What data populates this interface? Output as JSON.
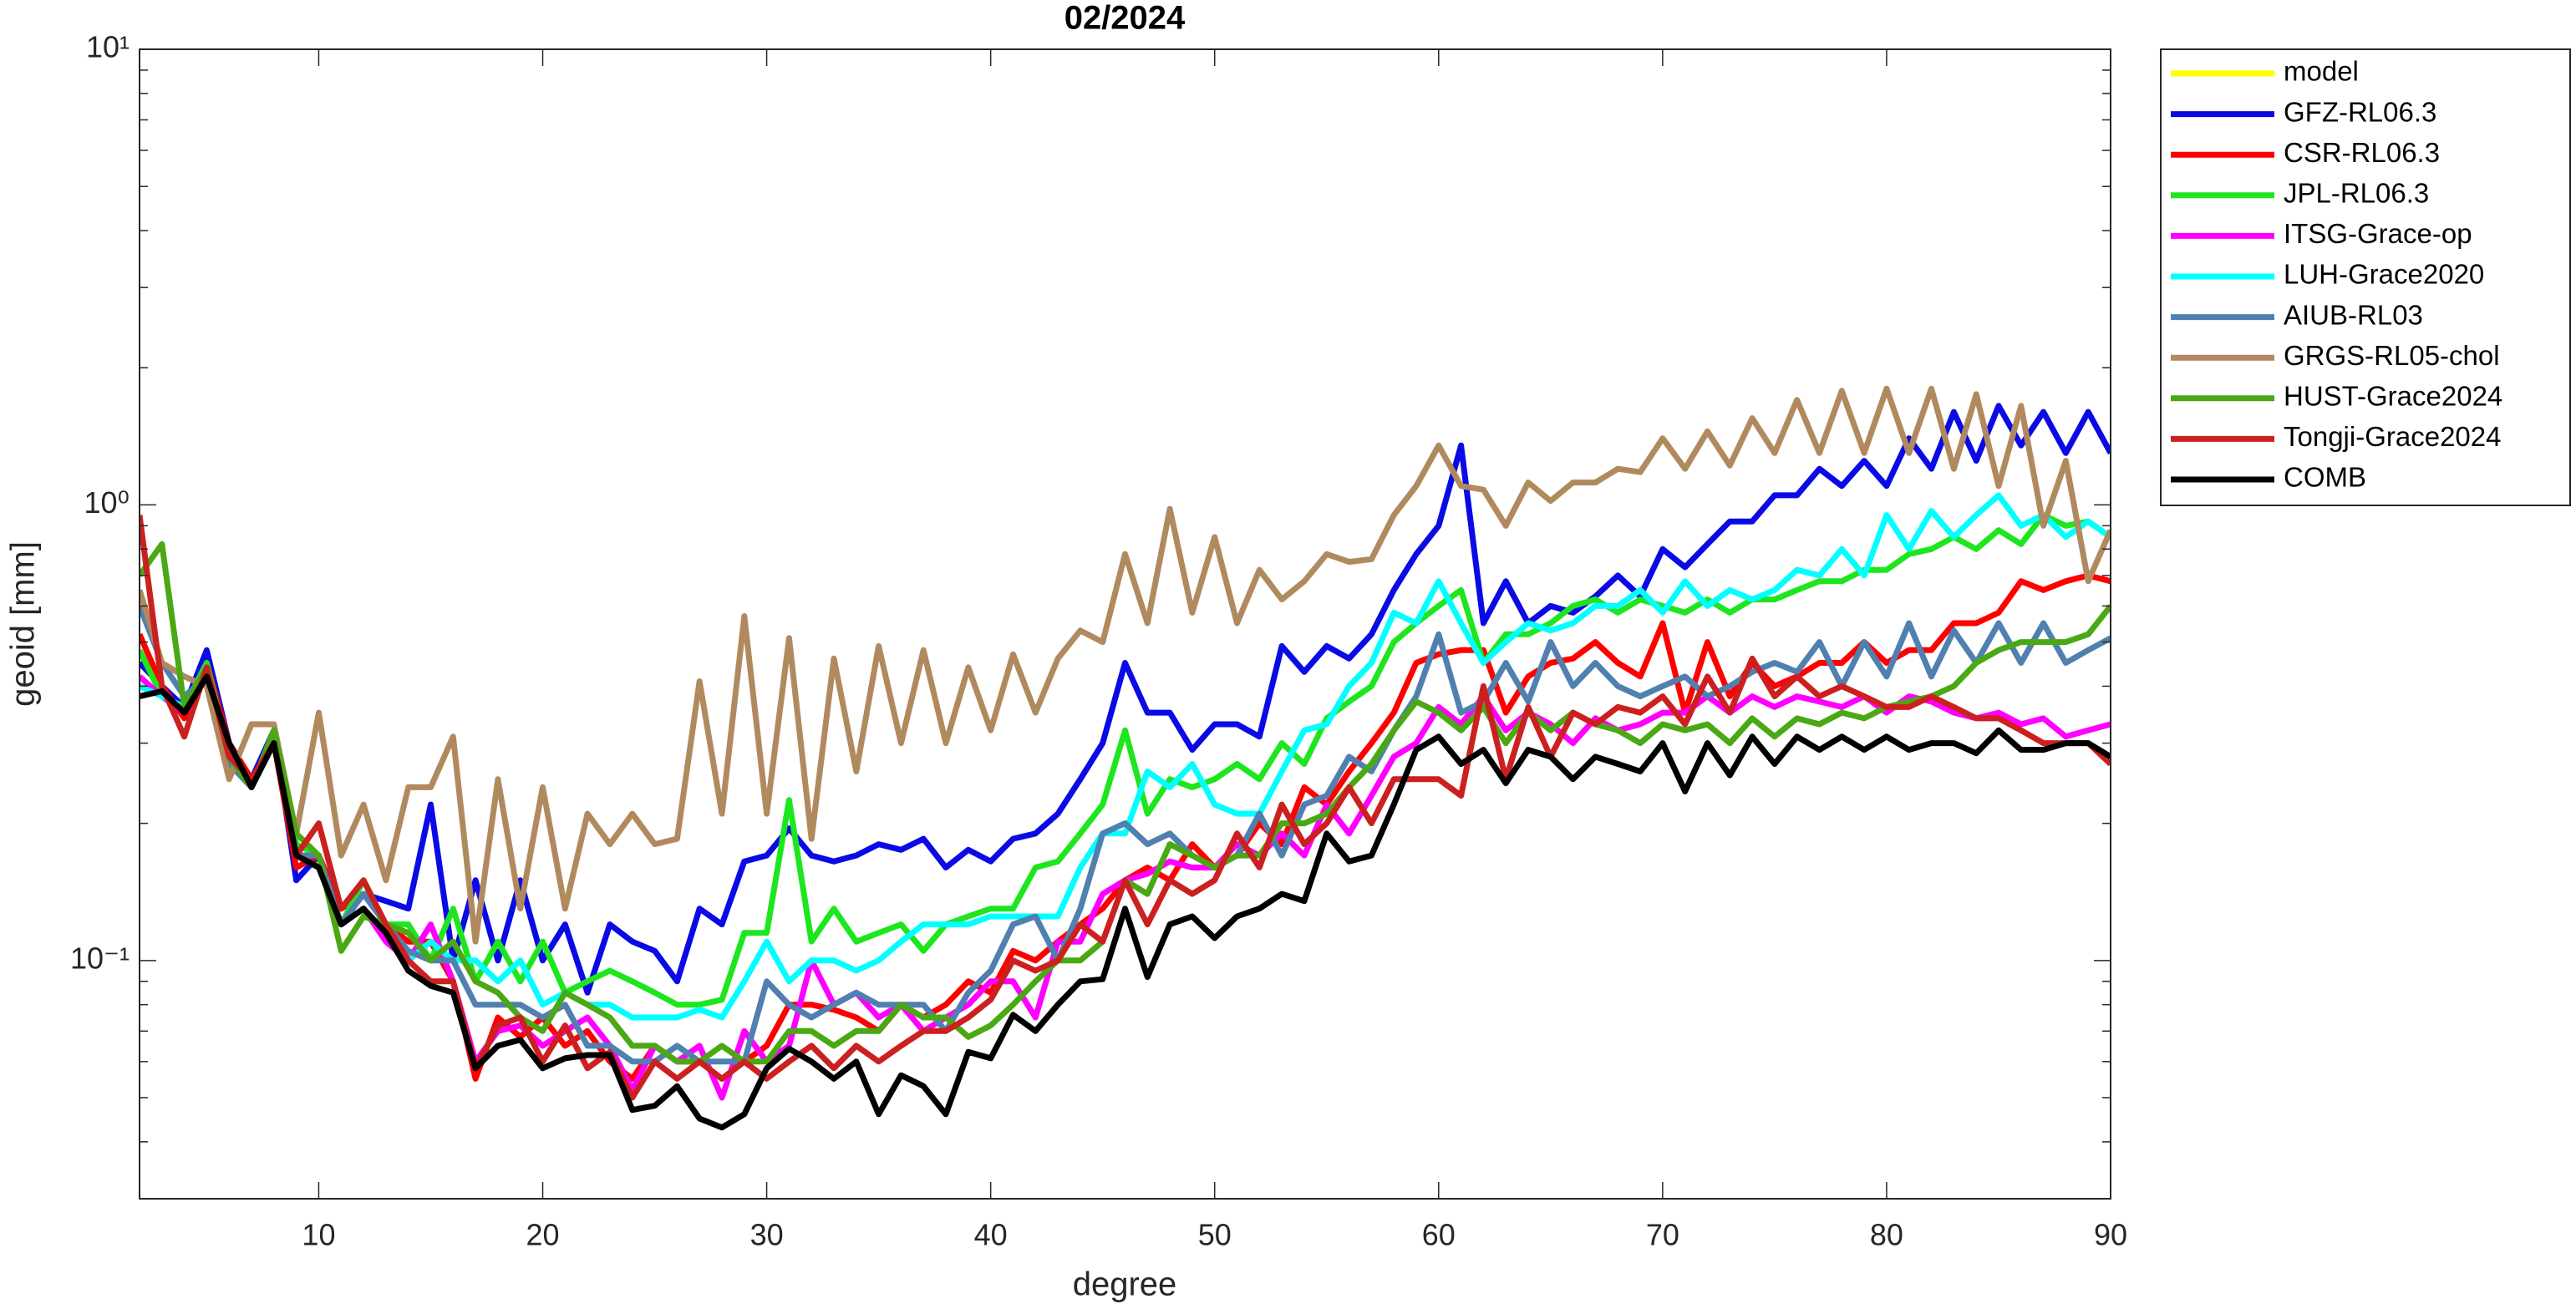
{
  "chart_data": {
    "type": "line",
    "title": "02/2024",
    "x_label": "degree",
    "y_label": "geoid [mm]",
    "x": [
      2,
      3,
      4,
      5,
      6,
      7,
      8,
      9,
      10,
      11,
      12,
      13,
      14,
      15,
      16,
      17,
      18,
      19,
      20,
      21,
      22,
      23,
      24,
      25,
      26,
      27,
      28,
      29,
      30,
      31,
      32,
      33,
      34,
      35,
      36,
      37,
      38,
      39,
      40,
      41,
      42,
      43,
      44,
      45,
      46,
      47,
      48,
      49,
      50,
      51,
      52,
      53,
      54,
      55,
      56,
      57,
      58,
      59,
      60,
      61,
      62,
      63,
      64,
      65,
      66,
      67,
      68,
      69,
      70,
      71,
      72,
      73,
      74,
      75,
      76,
      77,
      78,
      79,
      80,
      81,
      82,
      83,
      84,
      85,
      86,
      87,
      88,
      89,
      90
    ],
    "xlim": [
      2,
      90
    ],
    "xticks": [
      10,
      20,
      30,
      40,
      50,
      60,
      70,
      80,
      90
    ],
    "ylim": [
      0.03,
      10
    ],
    "log_y": true,
    "yticks": [
      {
        "value": 0.1,
        "label": "10⁻¹"
      },
      {
        "value": 1,
        "label": "10⁰"
      },
      {
        "value": 10,
        "label": "10¹"
      }
    ],
    "grid": false,
    "legend": "northeastoutside",
    "series": [
      {
        "name": "model",
        "color": "#ffff00",
        "values": [
          null,
          null,
          null,
          null,
          null,
          null,
          null,
          null,
          null,
          null,
          null,
          null,
          null,
          null,
          null,
          null,
          null,
          null,
          null,
          null,
          null,
          null,
          null,
          null,
          null,
          null,
          null,
          null,
          null,
          null,
          null,
          null,
          null,
          null,
          null,
          null,
          null,
          null,
          null,
          null,
          null,
          null,
          null,
          null,
          null,
          null,
          null,
          null,
          null,
          null,
          null,
          null,
          null,
          null,
          null,
          null,
          null,
          null,
          null,
          null,
          null,
          null,
          null,
          null,
          null,
          null,
          null,
          null,
          null,
          null,
          null,
          null,
          null,
          null,
          null,
          null,
          null,
          null,
          null,
          null,
          null,
          null,
          null,
          null,
          null,
          null,
          null,
          null,
          null
        ]
      },
      {
        "name": "GFZ-RL06.3",
        "color": "#0a0ae6",
        "values": [
          0.45,
          0.4,
          0.36,
          0.48,
          0.3,
          0.25,
          0.32,
          0.15,
          0.17,
          0.13,
          0.14,
          0.135,
          0.13,
          0.22,
          0.1,
          0.15,
          0.1,
          0.15,
          0.1,
          0.12,
          0.085,
          0.12,
          0.11,
          0.105,
          0.09,
          0.13,
          0.12,
          0.165,
          0.17,
          0.195,
          0.17,
          0.165,
          0.17,
          0.18,
          0.175,
          0.185,
          0.16,
          0.175,
          0.165,
          0.185,
          0.19,
          0.21,
          0.25,
          0.3,
          0.45,
          0.35,
          0.35,
          0.29,
          0.33,
          0.33,
          0.31,
          0.49,
          0.43,
          0.49,
          0.46,
          0.52,
          0.65,
          0.78,
          0.9,
          1.35,
          0.55,
          0.68,
          0.55,
          0.6,
          0.58,
          0.63,
          0.7,
          0.63,
          0.8,
          0.73,
          0.82,
          0.92,
          0.92,
          1.05,
          1.05,
          1.2,
          1.1,
          1.25,
          1.1,
          1.4,
          1.2,
          1.6,
          1.25,
          1.65,
          1.35,
          1.6,
          1.3,
          1.6,
          1.3
        ]
      },
      {
        "name": "CSR-RL06.3",
        "color": "#ff0000",
        "values": [
          0.52,
          0.4,
          0.34,
          0.45,
          0.3,
          0.25,
          0.3,
          0.16,
          0.17,
          0.13,
          0.14,
          0.12,
          0.11,
          0.11,
          0.09,
          0.055,
          0.075,
          0.068,
          0.075,
          0.065,
          0.07,
          0.06,
          0.055,
          0.065,
          0.06,
          0.06,
          0.055,
          0.06,
          0.065,
          0.08,
          0.08,
          0.078,
          0.075,
          0.07,
          0.08,
          0.075,
          0.08,
          0.09,
          0.085,
          0.105,
          0.1,
          0.11,
          0.12,
          0.13,
          0.15,
          0.16,
          0.15,
          0.18,
          0.16,
          0.17,
          0.2,
          0.18,
          0.24,
          0.22,
          0.26,
          0.3,
          0.35,
          0.45,
          0.47,
          0.48,
          0.48,
          0.35,
          0.42,
          0.45,
          0.46,
          0.5,
          0.45,
          0.42,
          0.55,
          0.35,
          0.5,
          0.38,
          0.45,
          0.4,
          0.42,
          0.45,
          0.45,
          0.5,
          0.45,
          0.48,
          0.48,
          0.55,
          0.55,
          0.58,
          0.68,
          0.65,
          0.68,
          0.7,
          0.68
        ]
      },
      {
        "name": "JPL-RL06.3",
        "color": "#1ee61e",
        "values": [
          0.48,
          0.38,
          0.36,
          0.45,
          0.28,
          0.24,
          0.32,
          0.18,
          0.17,
          0.12,
          0.15,
          0.12,
          0.12,
          0.1,
          0.13,
          0.09,
          0.11,
          0.09,
          0.11,
          0.085,
          0.09,
          0.095,
          0.09,
          0.085,
          0.08,
          0.08,
          0.082,
          0.115,
          0.115,
          0.225,
          0.11,
          0.13,
          0.11,
          0.115,
          0.12,
          0.105,
          0.12,
          0.125,
          0.13,
          0.13,
          0.16,
          0.165,
          0.19,
          0.22,
          0.32,
          0.21,
          0.25,
          0.24,
          0.25,
          0.27,
          0.25,
          0.3,
          0.27,
          0.34,
          0.37,
          0.4,
          0.5,
          0.55,
          0.6,
          0.65,
          0.45,
          0.52,
          0.52,
          0.55,
          0.6,
          0.62,
          0.58,
          0.62,
          0.6,
          0.58,
          0.62,
          0.58,
          0.62,
          0.62,
          0.65,
          0.68,
          0.68,
          0.72,
          0.72,
          0.78,
          0.8,
          0.85,
          0.8,
          0.88,
          0.82,
          0.95,
          0.9,
          0.92,
          0.85
        ]
      },
      {
        "name": "ITSG-Grace-op",
        "color": "#ff00ff",
        "values": [
          0.42,
          0.38,
          0.35,
          0.44,
          0.28,
          0.24,
          0.3,
          0.17,
          0.17,
          0.12,
          0.13,
          0.11,
          0.1,
          0.12,
          0.09,
          0.06,
          0.07,
          0.072,
          0.065,
          0.07,
          0.075,
          0.065,
          0.052,
          0.065,
          0.06,
          0.065,
          0.05,
          0.07,
          0.06,
          0.065,
          0.1,
          0.08,
          0.085,
          0.075,
          0.08,
          0.07,
          0.075,
          0.08,
          0.09,
          0.09,
          0.075,
          0.11,
          0.11,
          0.14,
          0.15,
          0.155,
          0.165,
          0.16,
          0.16,
          0.18,
          0.17,
          0.19,
          0.17,
          0.22,
          0.19,
          0.23,
          0.28,
          0.3,
          0.36,
          0.33,
          0.38,
          0.32,
          0.35,
          0.33,
          0.3,
          0.34,
          0.32,
          0.33,
          0.35,
          0.35,
          0.38,
          0.35,
          0.38,
          0.36,
          0.38,
          0.37,
          0.36,
          0.38,
          0.35,
          0.38,
          0.37,
          0.35,
          0.34,
          0.35,
          0.33,
          0.34,
          0.31,
          0.32,
          0.33
        ]
      },
      {
        "name": "LUH-Grace2020",
        "color": "#00ffff",
        "values": [
          0.4,
          0.38,
          0.36,
          0.44,
          0.28,
          0.24,
          0.3,
          0.17,
          0.16,
          0.12,
          0.14,
          0.12,
          0.1,
          0.11,
          0.1,
          0.1,
          0.09,
          0.1,
          0.08,
          0.085,
          0.08,
          0.08,
          0.075,
          0.075,
          0.075,
          0.078,
          0.075,
          0.09,
          0.11,
          0.09,
          0.1,
          0.1,
          0.095,
          0.1,
          0.11,
          0.12,
          0.12,
          0.12,
          0.125,
          0.125,
          0.125,
          0.125,
          0.16,
          0.19,
          0.19,
          0.26,
          0.24,
          0.27,
          0.22,
          0.21,
          0.21,
          0.26,
          0.32,
          0.33,
          0.4,
          0.45,
          0.58,
          0.55,
          0.68,
          0.55,
          0.45,
          0.5,
          0.55,
          0.53,
          0.55,
          0.6,
          0.6,
          0.65,
          0.58,
          0.68,
          0.6,
          0.65,
          0.62,
          0.65,
          0.72,
          0.7,
          0.8,
          0.7,
          0.95,
          0.8,
          0.97,
          0.85,
          0.95,
          1.05,
          0.9,
          0.95,
          0.85,
          0.92,
          0.85
        ]
      },
      {
        "name": "AIUB-RL03",
        "color": "#5080b0",
        "values": [
          0.6,
          0.45,
          0.38,
          0.42,
          0.27,
          0.24,
          0.3,
          0.17,
          0.17,
          0.12,
          0.14,
          0.12,
          0.105,
          0.1,
          0.1,
          0.08,
          0.08,
          0.08,
          0.075,
          0.08,
          0.065,
          0.065,
          0.06,
          0.06,
          0.065,
          0.06,
          0.06,
          0.06,
          0.09,
          0.08,
          0.075,
          0.08,
          0.085,
          0.08,
          0.08,
          0.08,
          0.07,
          0.085,
          0.095,
          0.12,
          0.125,
          0.1,
          0.13,
          0.19,
          0.2,
          0.18,
          0.19,
          0.17,
          0.16,
          0.17,
          0.21,
          0.17,
          0.22,
          0.23,
          0.28,
          0.26,
          0.32,
          0.38,
          0.52,
          0.35,
          0.37,
          0.45,
          0.37,
          0.5,
          0.4,
          0.45,
          0.4,
          0.38,
          0.4,
          0.42,
          0.38,
          0.4,
          0.43,
          0.45,
          0.43,
          0.5,
          0.4,
          0.5,
          0.42,
          0.55,
          0.42,
          0.53,
          0.45,
          0.55,
          0.45,
          0.55,
          0.45,
          0.48,
          0.51
        ]
      },
      {
        "name": "GRGS-RL05-chol",
        "color": "#b08a5e",
        "values": [
          0.65,
          0.45,
          0.42,
          0.4,
          0.25,
          0.33,
          0.33,
          0.19,
          0.35,
          0.17,
          0.22,
          0.15,
          0.24,
          0.24,
          0.31,
          0.11,
          0.25,
          0.13,
          0.24,
          0.13,
          0.21,
          0.18,
          0.21,
          0.18,
          0.185,
          0.41,
          0.21,
          0.57,
          0.21,
          0.51,
          0.185,
          0.46,
          0.26,
          0.49,
          0.3,
          0.48,
          0.3,
          0.44,
          0.32,
          0.47,
          0.35,
          0.46,
          0.53,
          0.5,
          0.78,
          0.55,
          0.98,
          0.58,
          0.85,
          0.55,
          0.72,
          0.62,
          0.68,
          0.78,
          0.75,
          0.76,
          0.95,
          1.1,
          1.35,
          1.1,
          1.08,
          0.9,
          1.12,
          1.02,
          1.12,
          1.12,
          1.2,
          1.18,
          1.4,
          1.2,
          1.45,
          1.22,
          1.55,
          1.3,
          1.7,
          1.3,
          1.78,
          1.3,
          1.8,
          1.3,
          1.8,
          1.2,
          1.75,
          1.1,
          1.65,
          0.9,
          1.25,
          0.68,
          0.88
        ]
      },
      {
        "name": "HUST-Grace2024",
        "color": "#4aa814",
        "values": [
          0.7,
          0.82,
          0.36,
          0.44,
          0.28,
          0.24,
          0.32,
          0.19,
          0.17,
          0.105,
          0.125,
          0.12,
          0.115,
          0.1,
          0.11,
          0.09,
          0.085,
          0.075,
          0.07,
          0.085,
          0.08,
          0.075,
          0.065,
          0.065,
          0.06,
          0.06,
          0.065,
          0.06,
          0.06,
          0.07,
          0.07,
          0.065,
          0.07,
          0.07,
          0.08,
          0.075,
          0.075,
          0.068,
          0.072,
          0.08,
          0.09,
          0.1,
          0.1,
          0.11,
          0.15,
          0.14,
          0.18,
          0.17,
          0.16,
          0.17,
          0.17,
          0.2,
          0.2,
          0.21,
          0.24,
          0.27,
          0.32,
          0.37,
          0.35,
          0.32,
          0.36,
          0.3,
          0.35,
          0.32,
          0.35,
          0.33,
          0.32,
          0.3,
          0.33,
          0.32,
          0.33,
          0.3,
          0.34,
          0.31,
          0.34,
          0.33,
          0.35,
          0.34,
          0.36,
          0.37,
          0.38,
          0.4,
          0.45,
          0.48,
          0.5,
          0.5,
          0.5,
          0.52,
          0.6
        ]
      },
      {
        "name": "Tongji-Grace2024",
        "color": "#cc2020",
        "values": [
          0.95,
          0.4,
          0.31,
          0.44,
          0.28,
          0.25,
          0.3,
          0.17,
          0.2,
          0.13,
          0.15,
          0.12,
          0.1,
          0.09,
          0.09,
          0.058,
          0.072,
          0.075,
          0.06,
          0.072,
          0.058,
          0.063,
          0.05,
          0.06,
          0.055,
          0.06,
          0.055,
          0.06,
          0.055,
          0.06,
          0.065,
          0.058,
          0.065,
          0.06,
          0.065,
          0.07,
          0.07,
          0.075,
          0.082,
          0.1,
          0.095,
          0.1,
          0.12,
          0.11,
          0.15,
          0.12,
          0.15,
          0.14,
          0.15,
          0.19,
          0.16,
          0.22,
          0.18,
          0.2,
          0.24,
          0.2,
          0.25,
          0.25,
          0.25,
          0.23,
          0.4,
          0.25,
          0.36,
          0.28,
          0.35,
          0.33,
          0.36,
          0.35,
          0.38,
          0.33,
          0.42,
          0.35,
          0.46,
          0.38,
          0.42,
          0.38,
          0.4,
          0.38,
          0.36,
          0.36,
          0.38,
          0.36,
          0.34,
          0.34,
          0.32,
          0.3,
          0.3,
          0.3,
          0.27
        ]
      },
      {
        "name": "COMB",
        "color": "#000000",
        "values": [
          0.38,
          0.39,
          0.35,
          0.42,
          0.3,
          0.24,
          0.3,
          0.17,
          0.16,
          0.12,
          0.13,
          0.115,
          0.095,
          0.088,
          0.085,
          0.058,
          0.065,
          0.067,
          0.058,
          0.061,
          0.062,
          0.062,
          0.047,
          0.048,
          0.053,
          0.045,
          0.043,
          0.046,
          0.058,
          0.064,
          0.06,
          0.055,
          0.06,
          0.046,
          0.056,
          0.053,
          0.046,
          0.063,
          0.061,
          0.076,
          0.07,
          0.08,
          0.09,
          0.091,
          0.13,
          0.092,
          0.12,
          0.125,
          0.112,
          0.125,
          0.13,
          0.14,
          0.135,
          0.19,
          0.165,
          0.17,
          0.22,
          0.29,
          0.31,
          0.27,
          0.29,
          0.245,
          0.29,
          0.28,
          0.25,
          0.28,
          0.27,
          0.26,
          0.3,
          0.235,
          0.3,
          0.255,
          0.31,
          0.27,
          0.31,
          0.29,
          0.31,
          0.29,
          0.31,
          0.29,
          0.3,
          0.3,
          0.285,
          0.32,
          0.29,
          0.29,
          0.3,
          0.3,
          0.28
        ]
      }
    ]
  }
}
